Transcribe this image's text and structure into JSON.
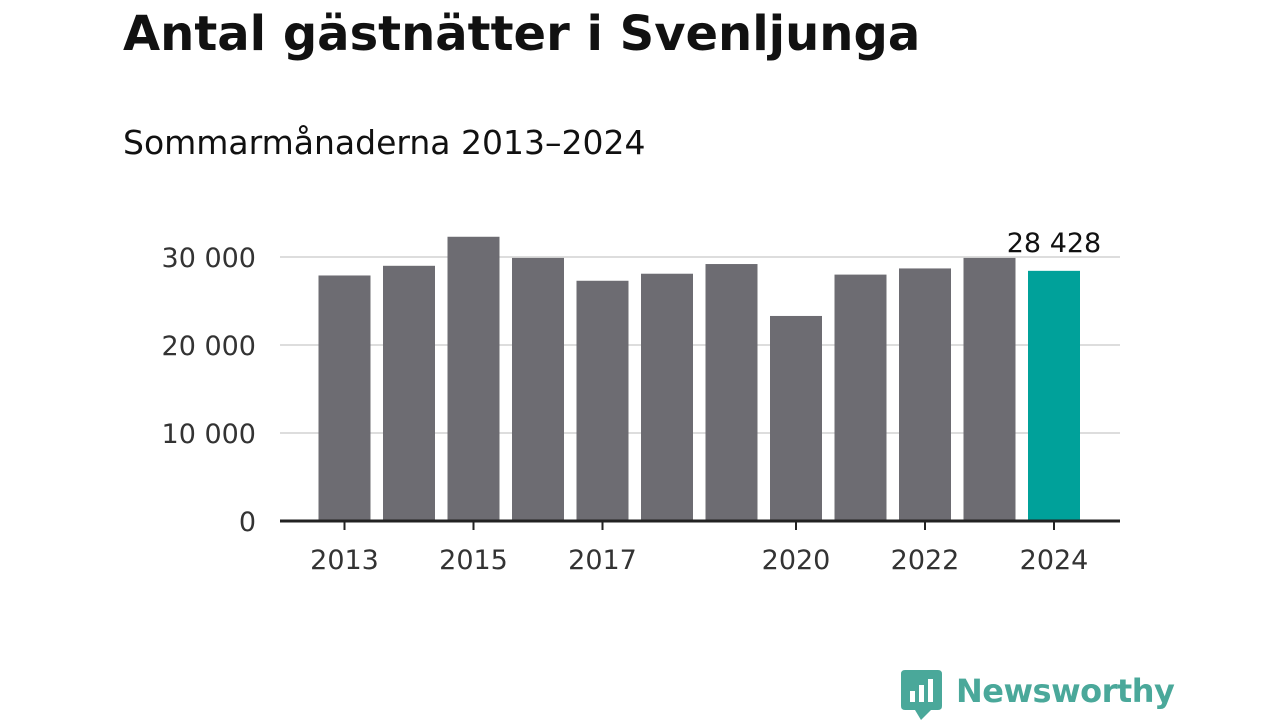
{
  "title": "Antal gästnätter i Svenljunga",
  "subtitle": "Sommarmånaderna 2013–2024",
  "chart_data": {
    "type": "bar",
    "title": "Antal gästnätter i Svenljunga",
    "subtitle": "Sommarmånaderna 2013–2024",
    "categories": [
      "2013",
      "2014",
      "2015",
      "2016",
      "2017",
      "2018",
      "2019",
      "2020",
      "2021",
      "2022",
      "2023",
      "2024"
    ],
    "values": [
      27900,
      29000,
      32300,
      29900,
      27300,
      28100,
      29200,
      23300,
      28000,
      28700,
      29900,
      28428
    ],
    "x_tick_labels": [
      "2013",
      "2015",
      "2017",
      "2020",
      "2022",
      "2024"
    ],
    "y_ticks": [
      0,
      10000,
      20000,
      30000
    ],
    "y_tick_labels": [
      "0",
      "10 000",
      "20 000",
      "30 000"
    ],
    "ylim": [
      0,
      30000
    ],
    "xlabel": "",
    "ylabel": "",
    "grid": true,
    "annotation": {
      "category": "2024",
      "text": "28 428"
    },
    "colors": {
      "bar": "#6d6c72",
      "highlight": "#00a19a",
      "grid": "#dddddd",
      "axis": "#222222"
    }
  },
  "brand": {
    "name": "Newsworthy",
    "icon": "newsworthy-logo-icon",
    "color": "#4aa89a"
  }
}
